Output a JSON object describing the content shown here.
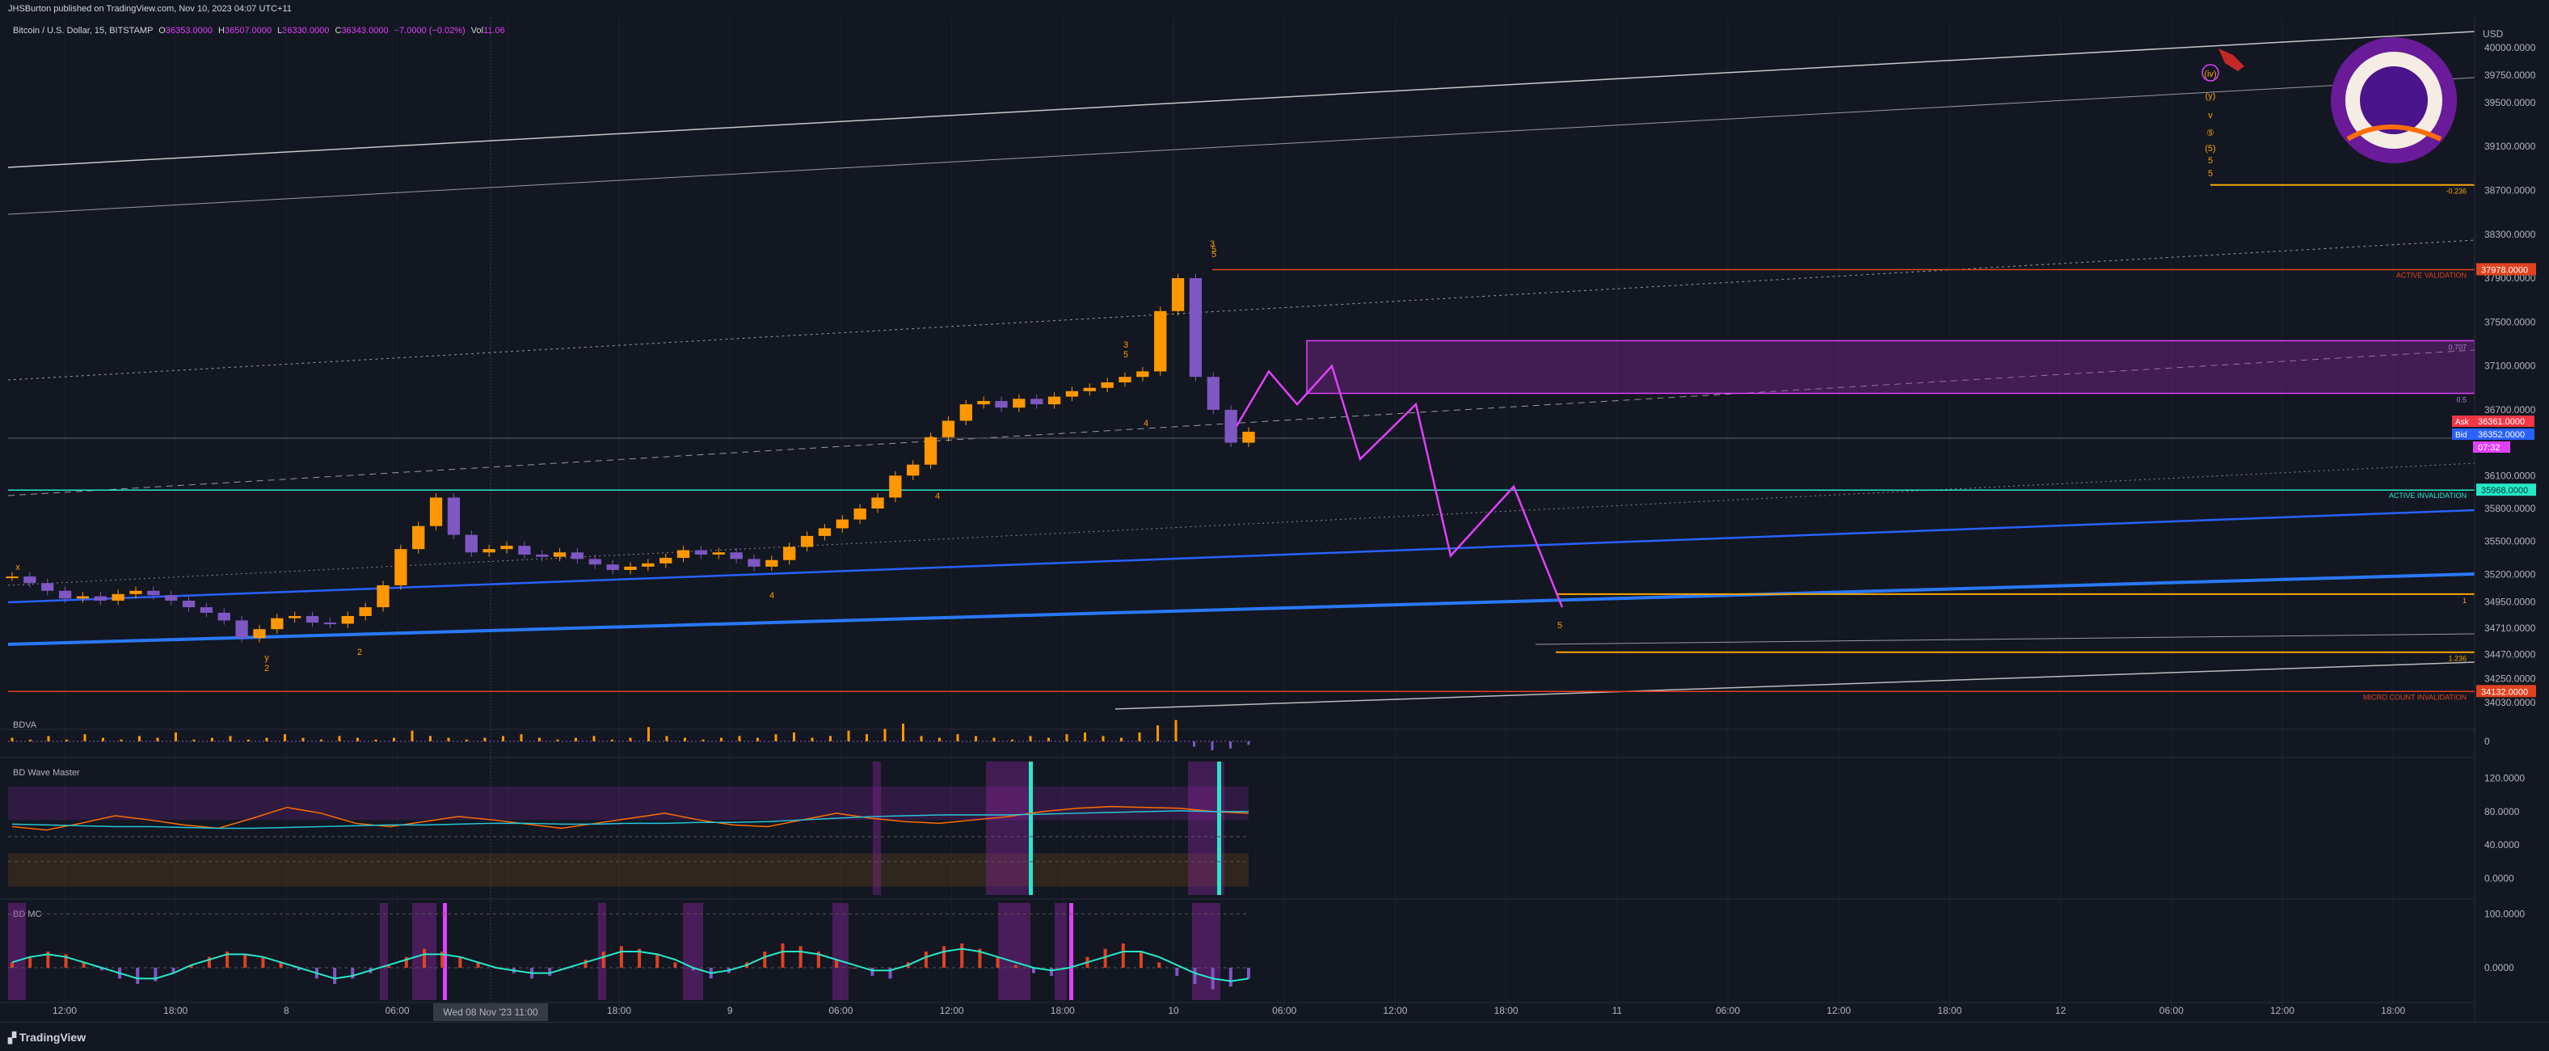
{
  "header": {
    "publisher": "JHSBurton published on TradingView.com, Nov 10, 2023 04:07 UTC+11",
    "symbol": "Bitcoin / U.S. Dollar, 15, BITSTAMP",
    "ohlc": {
      "o_label": "O",
      "o": "36353.0000",
      "h_label": "H",
      "h": "36507.0000",
      "l_label": "L",
      "l": "36330.0000",
      "c_label": "C",
      "c": "36343.0000",
      "change": "−7.0000 (−0.02%)",
      "vol_label": "Vol",
      "vol": "11.06"
    },
    "currency": "USD"
  },
  "footer": {
    "brand": "TradingView"
  },
  "colors": {
    "background": "#131722",
    "up": "#ff9800",
    "down": "#7e57c2",
    "magenta": "#e040fb",
    "teal": "#26e8c8",
    "blue": "#2962ff",
    "gold": "#f7a600",
    "red": "#e0421f"
  },
  "chart_data": [
    {
      "type": "line",
      "name": "price",
      "title": "Bitcoin / U.S. Dollar, 15, BITSTAMP",
      "xlabel": "",
      "ylabel": "",
      "x_ticks": [
        "12:00",
        "18:00",
        "8",
        "06:00",
        "12:00",
        "18:00",
        "9",
        "06:00",
        "12:00",
        "18:00",
        "10",
        "06:00",
        "12:00",
        "18:00",
        "11",
        "06:00",
        "12:00",
        "18:00",
        "12",
        "06:00",
        "12:00",
        "18:00"
      ],
      "x_highlight": "Wed 08 Nov '23  11:00",
      "y_ticks": [
        40000,
        39750,
        39500,
        39100,
        38700,
        38300,
        37900,
        37500,
        37100,
        36700,
        36100,
        35800,
        35500,
        35200,
        34950,
        34710,
        34470,
        34250,
        34030
      ],
      "ylim": [
        33950,
        40200
      ],
      "series": [
        {
          "values": [
            35180,
            35120,
            35050,
            34980,
            35000,
            34960,
            35020,
            35050,
            35010,
            34960,
            34900,
            34850,
            34780,
            34620,
            34700,
            34800,
            34820,
            34760,
            34750,
            34820,
            34900,
            35100,
            35430,
            35640,
            35900,
            35560,
            35400,
            35430,
            35460,
            35380,
            35360,
            35400,
            35340,
            35290,
            35240,
            35270,
            35300,
            35350,
            35420,
            35380,
            35400,
            35340,
            35270,
            35330,
            35450,
            35550,
            35620,
            35700,
            35800,
            35900,
            36100,
            36200,
            36450,
            36600,
            36750,
            36780,
            36720,
            36800,
            36750,
            36820,
            36870,
            36900,
            36950,
            37000,
            37050,
            37600,
            37900,
            37000,
            36700,
            36400,
            36500
          ]
        }
      ],
      "projection": {
        "name": "",
        "values": [
          36550,
          37050,
          36750,
          37100,
          36250,
          36750,
          35370,
          36000,
          34900
        ]
      },
      "levels": [
        {
          "label": "37978.0000",
          "note": "ACTIVE VALIDATION",
          "value": 37978,
          "color": "#e0421f"
        },
        {
          "label": "35968.0000",
          "note": "ACTIVE INVALIDATION",
          "value": 35968,
          "color": "#26e8c8"
        },
        {
          "label": "34132.0000",
          "note": "MICRO COUNT INVALIDATION",
          "value": 34132,
          "color": "#e0421f"
        },
        {
          "label": "",
          "note": "-0.236",
          "value": 38750,
          "color": "#f7a600"
        },
        {
          "label": "",
          "note": "1",
          "value": 35020,
          "color": "#f7a600"
        },
        {
          "label": "",
          "note": "1.236",
          "value": 34490,
          "color": "#f7a600"
        }
      ],
      "zone": {
        "from": 36850,
        "to": 37330,
        "top_note": "0.707",
        "bottom_note": "0.5"
      },
      "price_tags": [
        {
          "label": "Ask",
          "value": "36361.0000",
          "color": "#f23645"
        },
        {
          "label": "Bid",
          "value": "36352.0000",
          "color": "#2962ff"
        },
        {
          "label": "",
          "value": "07:32",
          "color": "#e040fb"
        }
      ],
      "wave_labels": [
        "x",
        "y",
        "2",
        "2",
        "3",
        "4",
        "4",
        "3",
        "5",
        "5",
        "4",
        "3",
        "5",
        "5",
        "(iv)",
        "(y)",
        "v",
        "⑤",
        "(5)",
        "5",
        "5"
      ]
    },
    {
      "type": "bar",
      "name": "BDVA",
      "title": "BDVA",
      "values": [
        2,
        1,
        3,
        1,
        4,
        2,
        1,
        3,
        2,
        5,
        1,
        2,
        3,
        1,
        2,
        4,
        2,
        1,
        3,
        2,
        1,
        2,
        6,
        3,
        2,
        1,
        2,
        3,
        4,
        2,
        1,
        2,
        3,
        1,
        2,
        8,
        3,
        2,
        1,
        2,
        3,
        2,
        4,
        5,
        2,
        3,
        6,
        4,
        7,
        10,
        3,
        2,
        4,
        3,
        2,
        1,
        3,
        2,
        4,
        5,
        3,
        2,
        5,
        9,
        12,
        -3,
        -5,
        -4,
        -2
      ],
      "ytick": "0"
    },
    {
      "type": "line",
      "name": "BD Wave Master",
      "title": "BD Wave Master",
      "y_ticks": [
        "120.0000",
        "80.0000",
        "40.0000",
        "0.0000"
      ],
      "ylim": [
        -20,
        140
      ],
      "series": [
        {
          "color": "#ff6d00",
          "values": [
            62,
            58,
            66,
            75,
            70,
            64,
            60,
            72,
            85,
            78,
            66,
            62,
            68,
            74,
            70,
            65,
            60,
            66,
            72,
            78,
            70,
            64,
            62,
            70,
            78,
            72,
            68,
            66,
            70,
            74,
            80,
            84,
            86,
            85,
            84,
            80,
            78
          ]
        },
        {
          "color": "#26c6da",
          "values": [
            65,
            64,
            63,
            62,
            62,
            61,
            60,
            60,
            61,
            62,
            63,
            64,
            64,
            65,
            66,
            66,
            65,
            65,
            66,
            66,
            67,
            67,
            68,
            70,
            72,
            74,
            75,
            76,
            76,
            76,
            77,
            78,
            79,
            80,
            81,
            80,
            80
          ]
        }
      ]
    },
    {
      "type": "bar",
      "name": "BD MC",
      "title": "BD MC",
      "y_ticks": [
        "100.0000",
        "0.0000"
      ],
      "ylim": [
        -60,
        120
      ],
      "values": [
        10,
        20,
        30,
        25,
        10,
        -5,
        -20,
        -30,
        -25,
        -10,
        5,
        20,
        30,
        25,
        20,
        10,
        -5,
        -20,
        -30,
        -20,
        -10,
        5,
        20,
        35,
        30,
        20,
        10,
        0,
        -10,
        -20,
        -15,
        0,
        15,
        30,
        40,
        35,
        25,
        10,
        -5,
        -20,
        -10,
        10,
        30,
        45,
        40,
        30,
        15,
        0,
        -15,
        -20,
        10,
        30,
        40,
        45,
        35,
        20,
        5,
        -10,
        -15,
        0,
        20,
        35,
        45,
        30,
        10,
        -15,
        -30,
        -40,
        -35,
        -20
      ],
      "signal": [
        10,
        20,
        25,
        20,
        10,
        0,
        -10,
        -20,
        -20,
        -10,
        5,
        15,
        25,
        25,
        20,
        10,
        0,
        -10,
        -20,
        -15,
        -5,
        5,
        15,
        25,
        25,
        20,
        10,
        0,
        -5,
        -10,
        -10,
        0,
        10,
        20,
        30,
        30,
        25,
        15,
        0,
        -10,
        -5,
        5,
        20,
        30,
        30,
        25,
        15,
        5,
        -5,
        -5,
        5,
        20,
        30,
        35,
        30,
        20,
        10,
        0,
        -5,
        0,
        10,
        20,
        30,
        30,
        20,
        5,
        -10,
        -20,
        -25,
        -20
      ]
    }
  ]
}
